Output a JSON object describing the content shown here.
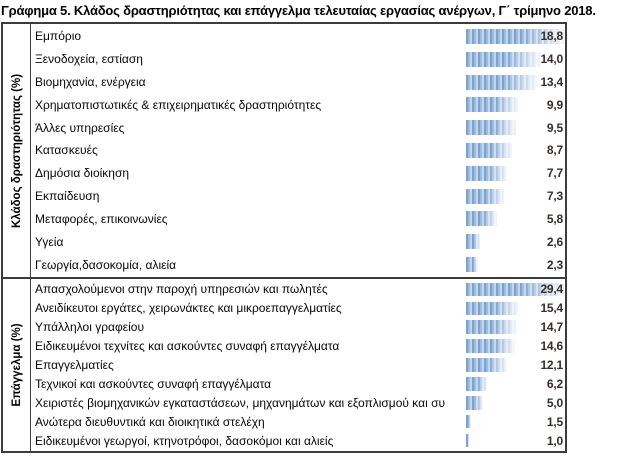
{
  "title": "Γράφημα 5. Κλάδος δραστηριότητας και επάγγελμα τελευταίας εργασίας ανέργων, Γ΄ τρίμηνο 2018.",
  "chart_data": {
    "type": "bar",
    "orientation": "horizontal",
    "grid": false,
    "legend": false,
    "value_decimal_separator": ",",
    "note": "Two stacked sections; each section's bars are scaled to its own maximum value; value labels right-aligned at chart edge",
    "sections": [
      {
        "axis_label": "Κλάδος δραστηριότητας (%)",
        "categories": [
          "Εμπόριο",
          "Ξενοδοχεία, εστίαση",
          "Βιομηχανία, ενέργεια",
          "Χρηματοπιστωτικές & επιχειρηματικές δραστηριότητες",
          "Άλλες υπηρεσίες",
          "Κατασκευές",
          "Δημόσια διοίκηση",
          "Εκπαίδευση",
          "Μεταφορές, επικοινωνίες",
          "Υγεία",
          "Γεωργία,δασοκομία, αλιεία"
        ],
        "values": [
          18.8,
          14.0,
          13.4,
          9.9,
          9.5,
          8.7,
          7.7,
          7.3,
          5.8,
          2.6,
          2.3
        ],
        "value_labels": [
          "18,8",
          "14,0",
          "13,4",
          "9,9",
          "9,5",
          "8,7",
          "7,7",
          "7,3",
          "5,8",
          "2,6",
          "2,3"
        ]
      },
      {
        "axis_label": "Επάγγελμα (%)",
        "categories": [
          "Απασχολούμενοι στην παροχή υπηρεσιών και πωλητές",
          "Ανειδίκευτοι εργάτες, χειρωνάκτες και μικροεπαγγελματίες",
          "Υπάλληλοι γραφείου",
          "Ειδικευμένοι τεχνίτες και ασκούντες συναφή επαγγέλματα",
          "Επαγγελματίες",
          "Τεχνικοί και ασκούντες συναφή επαγγέλματα",
          "Χειριστές βιομηχανικών εγκαταστάσεων, μηχανημάτων και εξοπλισμού και συ",
          "Ανώτερα διευθυντικά και διοικητικά στελέχη",
          "Ειδικευμένοι γεωργοί, κτηνοτρόφοι, δασοκόμοι και αλιείς"
        ],
        "values": [
          29.4,
          15.4,
          14.7,
          14.6,
          12.1,
          6.2,
          5.0,
          1.5,
          1.0
        ],
        "value_labels": [
          "29,4",
          "15,4",
          "14,7",
          "14,6",
          "12,1",
          "6,2",
          "5,0",
          "1,5",
          "1,0"
        ]
      }
    ]
  },
  "colors": {
    "bar_blue": "#7ba3d1",
    "bar_blue_light": "#c4d6ec",
    "value_text": "#3a2c2a",
    "border": "#3c3c3c",
    "title_text": "#000000"
  }
}
